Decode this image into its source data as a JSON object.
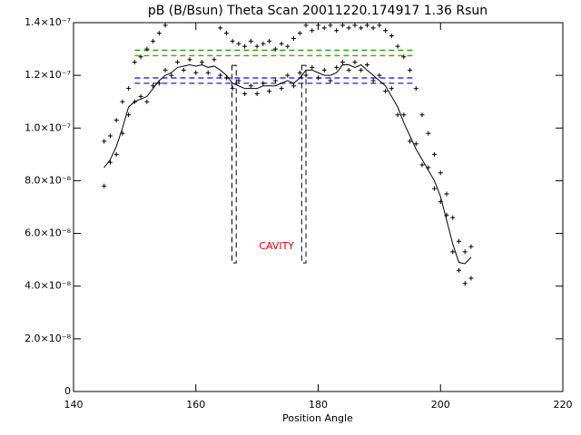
{
  "chart_data": {
    "type": "scatter",
    "title": "pB (B/Bsun) Theta Scan 20011220.174917 1.36 Rsun",
    "xlabel": "Position Angle",
    "xlim": [
      140,
      220
    ],
    "xticks": [
      140,
      160,
      180,
      200,
      220
    ],
    "ylim": [
      0,
      1.4e-07
    ],
    "yticks": [
      0,
      {
        "value": 2e-08,
        "label": "2.0×10⁻⁸"
      },
      {
        "value": 4e-08,
        "label": "4.0×10⁻⁸"
      },
      {
        "value": 6e-08,
        "label": "6.0×10⁻⁸"
      },
      {
        "value": 8e-08,
        "label": "8.0×10⁻⁸"
      },
      {
        "value": 1e-07,
        "label": "1.0×10⁻⁷"
      },
      {
        "value": 1.2e-07,
        "label": "1.2×10⁻⁷"
      },
      {
        "value": 1.4e-07,
        "label": "1.4×10⁻⁷"
      }
    ],
    "series": [
      {
        "style": "line",
        "color": "#000000",
        "x": [
          145,
          146,
          147,
          148,
          149,
          150,
          151,
          152,
          153,
          154,
          155,
          156,
          157,
          158,
          159,
          160,
          161,
          162,
          163,
          164,
          165,
          166,
          167,
          168,
          169,
          170,
          171,
          172,
          173,
          174,
          175,
          176,
          177,
          178,
          179,
          180,
          181,
          182,
          183,
          184,
          185,
          186,
          187,
          188,
          189,
          190,
          191,
          192,
          193,
          194,
          195,
          196,
          197,
          198,
          199,
          200,
          201,
          202,
          203,
          204,
          205
        ],
        "values": [
          8.5e-08,
          8.8e-08,
          9.3e-08,
          1e-07,
          1.08e-07,
          1.1e-07,
          1.11e-07,
          1.12e-07,
          1.15e-07,
          1.18e-07,
          1.2e-07,
          1.21e-07,
          1.23e-07,
          1.235e-07,
          1.24e-07,
          1.235e-07,
          1.24e-07,
          1.23e-07,
          1.235e-07,
          1.22e-07,
          1.2e-07,
          1.17e-07,
          1.16e-07,
          1.15e-07,
          1.15e-07,
          1.15e-07,
          1.16e-07,
          1.16e-07,
          1.16e-07,
          1.17e-07,
          1.18e-07,
          1.17e-07,
          1.19e-07,
          1.22e-07,
          1.22e-07,
          1.21e-07,
          1.2e-07,
          1.2e-07,
          1.21e-07,
          1.24e-07,
          1.24e-07,
          1.23e-07,
          1.24e-07,
          1.22e-07,
          1.2e-07,
          1.18e-07,
          1.16e-07,
          1.12e-07,
          1.08e-07,
          1.02e-07,
          9.7e-08,
          9.2e-08,
          8.8e-08,
          8.4e-08,
          8e-08,
          7.4e-08,
          6.5e-08,
          5.6e-08,
          4.9e-08,
          4.85e-08,
          5.1e-08
        ]
      },
      {
        "style": "plus",
        "color": "#000000",
        "x": [
          145,
          146,
          147,
          148,
          149,
          150,
          151,
          152,
          153,
          154,
          155,
          156,
          157,
          158,
          159,
          160,
          161,
          162,
          163,
          164,
          165,
          166,
          167,
          168,
          169,
          170,
          171,
          172,
          173,
          174,
          175,
          176,
          177,
          178,
          179,
          180,
          181,
          182,
          183,
          184,
          185,
          186,
          187,
          188,
          189,
          190,
          191,
          192,
          193,
          194,
          195,
          196,
          197,
          198,
          199,
          200,
          201,
          202,
          203,
          204,
          205
        ],
        "values": [
          7.8e-08,
          8.7e-08,
          9e-08,
          9.8e-08,
          1.05e-07,
          1.1e-07,
          1.12e-07,
          1.1e-07,
          1.16e-07,
          1.17e-07,
          1.22e-07,
          1.2e-07,
          1.25e-07,
          1.22e-07,
          1.26e-07,
          1.21e-07,
          1.25e-07,
          1.21e-07,
          1.26e-07,
          1.2e-07,
          1.19e-07,
          1.15e-07,
          1.18e-07,
          1.13e-07,
          1.16e-07,
          1.13e-07,
          1.17e-07,
          1.14e-07,
          1.18e-07,
          1.15e-07,
          1.2e-07,
          1.16e-07,
          1.21e-07,
          1.2e-07,
          1.23e-07,
          1.19e-07,
          1.22e-07,
          1.18e-07,
          1.23e-07,
          1.25e-07,
          1.22e-07,
          1.25e-07,
          1.22e-07,
          1.24e-07,
          1.18e-07,
          1.2e-07,
          1.14e-07,
          1.15e-07,
          1.05e-07,
          1.05e-07,
          9.5e-08,
          9.4e-08,
          8.6e-08,
          8.5e-08,
          7.7e-08,
          7.2e-08,
          6.7e-08,
          5.3e-08,
          4.6e-08,
          4.1e-08,
          4.3e-08
        ]
      },
      {
        "style": "plus",
        "color": "#000000",
        "x": [
          145,
          146,
          147,
          148,
          149,
          150,
          151,
          152,
          153,
          154,
          155,
          164,
          165,
          166,
          167,
          168,
          169,
          170,
          171,
          172,
          173,
          174,
          175,
          176,
          177,
          178,
          179,
          180,
          181,
          182,
          183,
          184,
          185,
          186,
          187,
          188,
          189,
          190,
          191,
          192,
          193,
          194,
          195,
          196,
          197,
          198,
          199,
          200,
          201,
          202,
          203,
          204,
          205
        ],
        "values": [
          9.5e-08,
          9.7e-08,
          1.03e-07,
          1.1e-07,
          1.15e-07,
          1.25e-07,
          1.27e-07,
          1.3e-07,
          1.33e-07,
          1.36e-07,
          1.39e-07,
          1.38e-07,
          1.36e-07,
          1.33e-07,
          1.32e-07,
          1.31e-07,
          1.33e-07,
          1.31e-07,
          1.32e-07,
          1.33e-07,
          1.3e-07,
          1.32e-07,
          1.31e-07,
          1.34e-07,
          1.36e-07,
          1.39e-07,
          1.37e-07,
          1.39e-07,
          1.38e-07,
          1.39e-07,
          1.37e-07,
          1.39e-07,
          1.38e-07,
          1.39e-07,
          1.38e-07,
          1.39e-07,
          1.38e-07,
          1.39e-07,
          1.37e-07,
          1.35e-07,
          1.31e-07,
          1.27e-07,
          1.22e-07,
          1.15e-07,
          1.05e-07,
          9.8e-08,
          9e-08,
          8.3e-08,
          7.5e-08,
          6.6e-08,
          5.7e-08,
          5.3e-08,
          5.5e-08
        ]
      }
    ],
    "hlines": [
      {
        "value": 1.295e-07,
        "x": [
          150,
          196
        ],
        "color": "#20a020"
      },
      {
        "value": 1.275e-07,
        "x": [
          150,
          196
        ],
        "color": "#8c8c00"
      },
      {
        "value": 1.19e-07,
        "x": [
          150,
          196
        ],
        "color": "#3030ff"
      },
      {
        "value": 1.17e-07,
        "x": [
          150,
          196
        ],
        "color": "#4646c8"
      }
    ],
    "regions": [
      {
        "x": [
          165.9,
          166.6
        ],
        "y": [
          4.88e-08,
          1.238e-07
        ]
      },
      {
        "x": [
          177.3,
          178.0
        ],
        "y": [
          4.88e-08,
          1.238e-07
        ]
      }
    ],
    "annotations": [
      {
        "text": "CAVITY",
        "x": 173.2,
        "y": 5.5e-08,
        "color": "#e00000"
      }
    ]
  }
}
